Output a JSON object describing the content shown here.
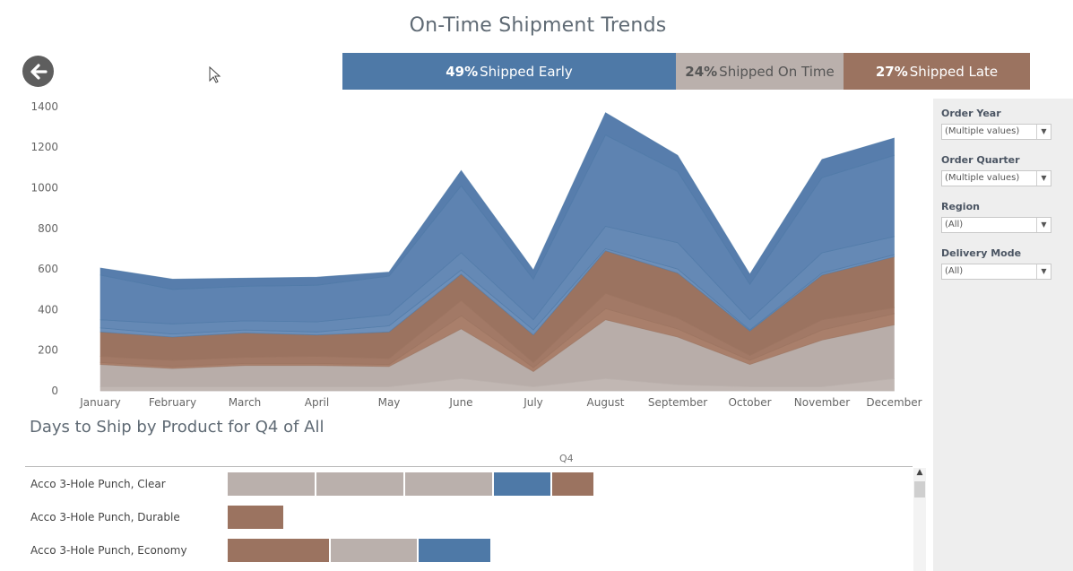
{
  "page": {
    "title": "On-Time Shipment Trends"
  },
  "summary": {
    "early": {
      "pct": "49%",
      "label": "Shipped Early"
    },
    "ontime": {
      "pct": "24%",
      "label": "Shipped On Time"
    },
    "late": {
      "pct": "27%",
      "label": "Shipped Late"
    }
  },
  "colors": {
    "early": "#4e79a7",
    "ontime": "#bab0ac",
    "late": "#9b7360"
  },
  "filters": [
    {
      "label": "Order Year",
      "value": "(Multiple values)"
    },
    {
      "label": "Order Quarter",
      "value": "(Multiple values)"
    },
    {
      "label": "Region",
      "value": "(All)"
    },
    {
      "label": "Delivery Mode",
      "value": "(All)"
    }
  ],
  "chart_data": [
    {
      "type": "area",
      "stacked": true,
      "x": [
        "January",
        "February",
        "March",
        "April",
        "May",
        "June",
        "July",
        "August",
        "September",
        "October",
        "November",
        "December"
      ],
      "yticks": [
        0,
        200,
        400,
        600,
        800,
        1000,
        1200,
        1400
      ],
      "ylim": [
        0,
        1400
      ],
      "series": [
        {
          "key": "ontime",
          "bands": [
            [
              0,
              20,
              130
            ],
            [
              0,
              20,
              110
            ],
            [
              0,
              20,
              125
            ],
            [
              0,
              20,
              125
            ],
            [
              0,
              20,
              120
            ],
            [
              0,
              60,
              305
            ],
            [
              0,
              20,
              95
            ],
            [
              0,
              60,
              350
            ],
            [
              0,
              30,
              265
            ],
            [
              0,
              20,
              130
            ],
            [
              0,
              20,
              250
            ],
            [
              0,
              60,
              325
            ]
          ]
        },
        {
          "key": "late",
          "bands": [
            [
              140,
              170,
              290
            ],
            [
              120,
              150,
              265
            ],
            [
              135,
              165,
              285
            ],
            [
              135,
              170,
              275
            ],
            [
              130,
              160,
              290
            ],
            [
              370,
              445,
              575
            ],
            [
              115,
              140,
              275
            ],
            [
              405,
              480,
              690
            ],
            [
              305,
              360,
              580
            ],
            [
              150,
              175,
              295
            ],
            [
              300,
              350,
              570
            ],
            [
              380,
              410,
              660
            ]
          ]
        },
        {
          "key": "early",
          "bands": [
            [
              310,
              350,
              570,
              605
            ],
            [
              280,
              330,
              500,
              550
            ],
            [
              300,
              345,
              515,
              555
            ],
            [
              290,
              340,
              520,
              560
            ],
            [
              320,
              375,
              565,
              585
            ],
            [
              595,
              680,
              1010,
              1085
            ],
            [
              300,
              350,
              550,
              595
            ],
            [
              700,
              810,
              1260,
              1370
            ],
            [
              600,
              730,
              1080,
              1160
            ],
            [
              300,
              350,
              525,
              575
            ],
            [
              580,
              680,
              1050,
              1140
            ],
            [
              670,
              760,
              1160,
              1245
            ]
          ]
        }
      ]
    },
    {
      "type": "bar",
      "title": "Days to Ship by Product for Q4 of All",
      "column": "Q4",
      "rows": [
        {
          "label": "Acco 3-Hole Punch, Clear",
          "segments": [
            {
              "status": "ontime",
              "value": 1.0
            },
            {
              "status": "ontime",
              "value": 1.0
            },
            {
              "status": "ontime",
              "value": 1.0
            },
            {
              "status": "early",
              "value": 0.65
            },
            {
              "status": "late",
              "value": 0.47
            }
          ]
        },
        {
          "label": "Acco 3-Hole Punch, Durable",
          "segments": [
            {
              "status": "late",
              "value": 0.64
            }
          ]
        },
        {
          "label": "Acco 3-Hole Punch, Economy",
          "segments": [
            {
              "status": "late",
              "value": 1.16
            },
            {
              "status": "ontime",
              "value": 0.99
            },
            {
              "status": "early",
              "value": 0.82
            }
          ]
        }
      ]
    }
  ]
}
